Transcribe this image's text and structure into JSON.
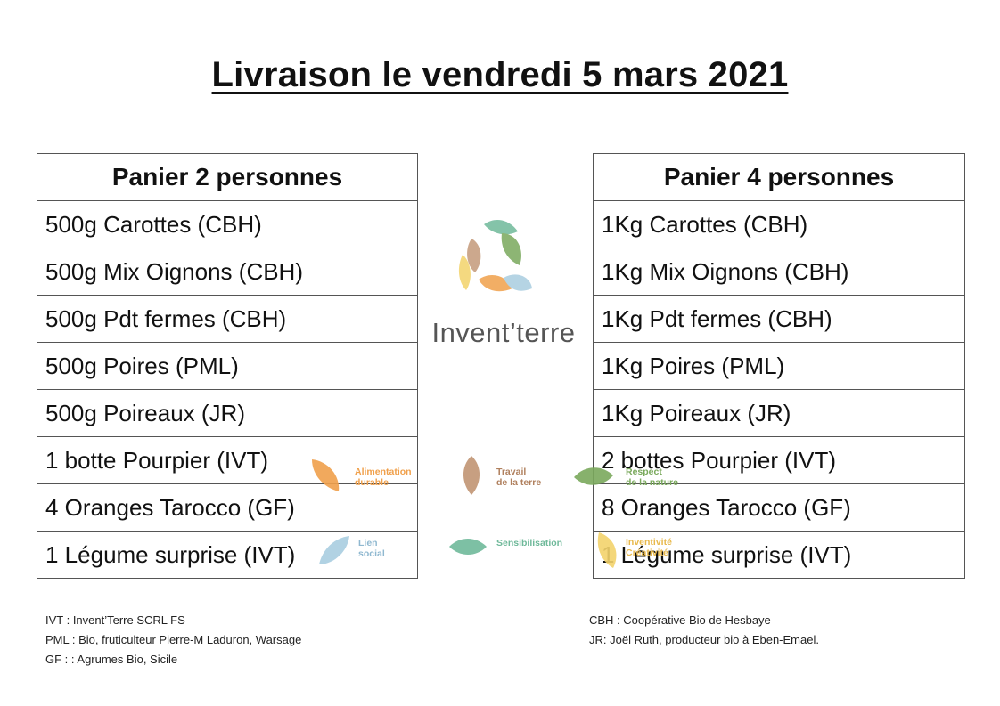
{
  "title": "Livraison le vendredi 5 mars 2021",
  "left_basket": {
    "header": "Panier 2 personnes",
    "items": [
      "500g Carottes (CBH)",
      "500g Mix Oignons (CBH)",
      "500g Pdt fermes (CBH)",
      "500g Poires (PML)",
      "500g Poireaux (JR)",
      "1 botte Pourpier (IVT)",
      "4 Oranges Tarocco (GF)",
      "1 Légume surprise (IVT)"
    ]
  },
  "right_basket": {
    "header": "Panier 4 personnes",
    "items": [
      "1Kg Carottes (CBH)",
      "1Kg Mix Oignons (CBH)",
      "1Kg Pdt fermes (CBH)",
      "1Kg Poires (PML)",
      "1Kg Poireaux (JR)",
      "2 bottes Pourpier (IVT)",
      "8 Oranges Tarocco (GF)",
      "1 Légume surprise (IVT)"
    ]
  },
  "logo": {
    "text": "Invent’terre"
  },
  "values": {
    "alimentation": "Alimentation\ndurable",
    "travail": "Travail\nde la terre",
    "respect": "Respect\nde la nature",
    "lien": "Lien\nsocial",
    "sensibilisation": "Sensibilisation",
    "inventivite": "Inventivité\nCréativité"
  },
  "colors": {
    "orange": "#f0a04b",
    "brown": "#c49a7a",
    "green": "#7aa95c",
    "blue": "#a9cde0",
    "teal": "#6fb99a",
    "yellow": "#f3d36b"
  },
  "footnotes_left": [
    "IVT : Invent’Terre SCRL FS",
    "PML : Bio, fruticulteur Pierre-M Laduron, Warsage",
    "GF : : Agrumes Bio, Sicile"
  ],
  "footnotes_right": [
    "CBH : Coopérative Bio de Hesbaye",
    "JR: Joël Ruth, producteur bio à Eben-Emael."
  ]
}
